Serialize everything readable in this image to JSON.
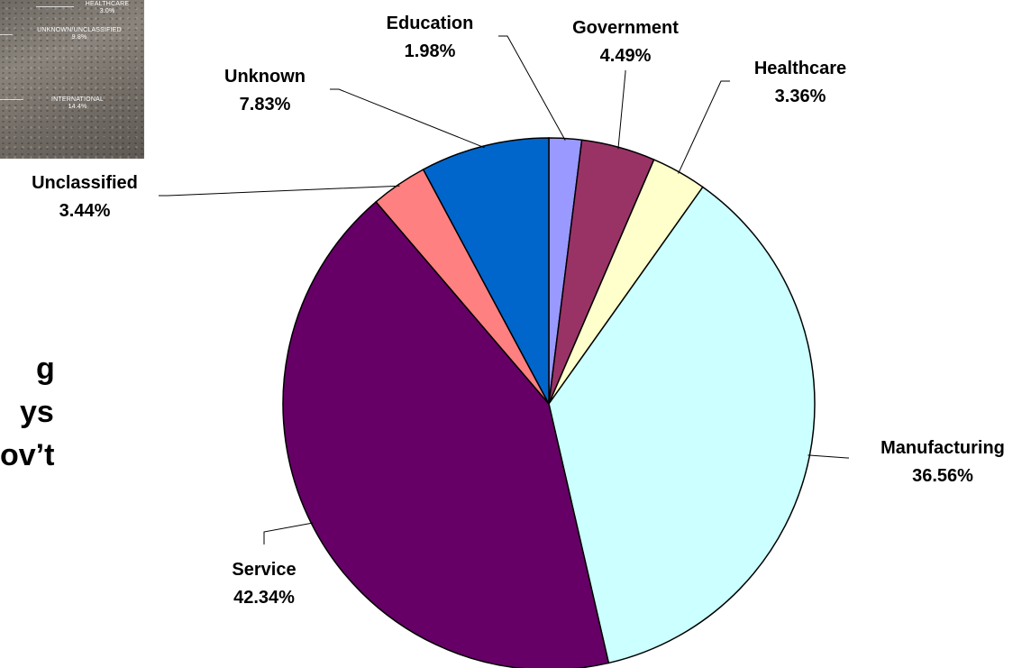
{
  "inset": {
    "labels": [
      {
        "name": "HEALTHCARE",
        "value": "3.0%"
      },
      {
        "name": "UNKNOWN/UNCLASSIFIED",
        "value": "9.8%"
      },
      {
        "name": "INTERNATIONAL",
        "value": "14.4%"
      }
    ]
  },
  "slide_text": {
    "lines": [
      "g",
      "ys",
      "ov’t"
    ]
  },
  "colors": {
    "Education": "#9999ff",
    "Government": "#993366",
    "Healthcare": "#ffffcc",
    "Manufacturing": "#ccffff",
    "Service": "#660066",
    "Unclassified": "#ff8080",
    "Unknown": "#0066cc"
  },
  "chart_data": {
    "type": "pie",
    "title": "",
    "start_angle": "12 o'clock",
    "direction": "clockwise",
    "slices": [
      {
        "label": "Education",
        "value": 1.98,
        "value_label": "1.98%"
      },
      {
        "label": "Government",
        "value": 4.49,
        "value_label": "4.49%"
      },
      {
        "label": "Healthcare",
        "value": 3.36,
        "value_label": "3.36%"
      },
      {
        "label": "Manufacturing",
        "value": 36.56,
        "value_label": "36.56%"
      },
      {
        "label": "Service",
        "value": 42.34,
        "value_label": "42.34%"
      },
      {
        "label": "Unclassified",
        "value": 3.44,
        "value_label": "3.44%"
      },
      {
        "label": "Unknown",
        "value": 7.83,
        "value_label": "7.83%"
      }
    ]
  }
}
